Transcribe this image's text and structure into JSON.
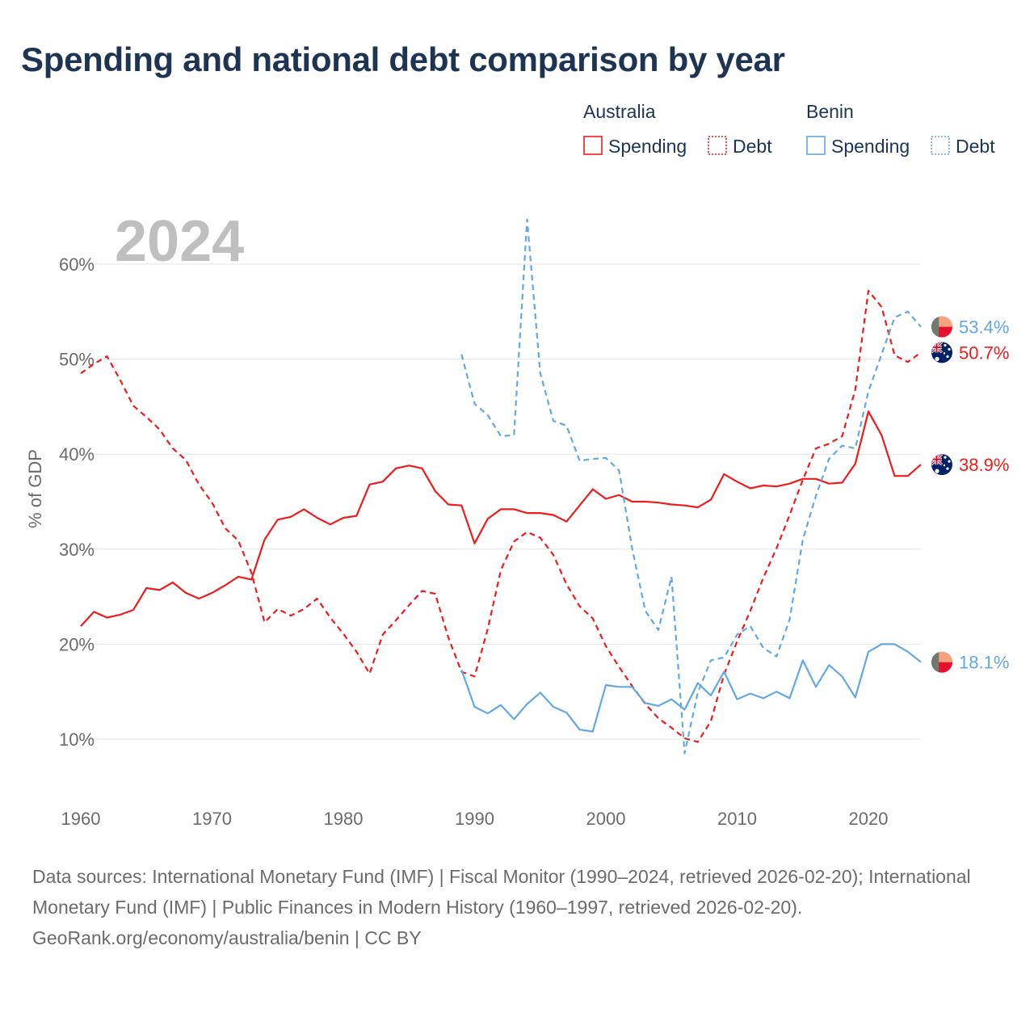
{
  "title": "Spending and national debt comparison by year",
  "chart_data": {
    "type": "line",
    "year_label": "2024",
    "ylabel": "% of GDP",
    "xlim": [
      1960,
      2024
    ],
    "ylim": [
      3,
      67
    ],
    "x_ticks": [
      1960,
      1970,
      1980,
      1990,
      2000,
      2010,
      2020
    ],
    "x_tick_labels": [
      "1960",
      "1970",
      "1980",
      "1990",
      "2000",
      "2010",
      "2020"
    ],
    "y_ticks": [
      10,
      20,
      30,
      40,
      50,
      60
    ],
    "y_tick_labels": [
      "10%",
      "20%",
      "30%",
      "40%",
      "50%",
      "60%"
    ],
    "legend": {
      "groups": [
        {
          "name": "Australia",
          "items": [
            {
              "label": "Spending",
              "style": "solid"
            },
            {
              "label": "Debt",
              "style": "dotted"
            }
          ],
          "color": "#ee1c1c"
        },
        {
          "name": "Benin",
          "items": [
            {
              "label": "Spending",
              "style": "solid"
            },
            {
              "label": "Debt",
              "style": "dotted"
            }
          ],
          "color": "#62a8e5"
        }
      ],
      "placement": "top-right"
    },
    "series": [
      {
        "name": "Australia Spending",
        "country": "Australia",
        "metric": "Spending",
        "color": "#ee1c1c",
        "dashed": false,
        "end_label": "38.9%",
        "flag": "australia",
        "x": [
          1960,
          1961,
          1962,
          1963,
          1964,
          1965,
          1966,
          1967,
          1968,
          1969,
          1970,
          1971,
          1972,
          1973,
          1974,
          1975,
          1976,
          1977,
          1978,
          1979,
          1980,
          1981,
          1982,
          1983,
          1984,
          1985,
          1986,
          1987,
          1988,
          1989,
          1990,
          1991,
          1992,
          1993,
          1994,
          1995,
          1996,
          1997,
          1998,
          1999,
          2000,
          2001,
          2002,
          2003,
          2004,
          2005,
          2006,
          2007,
          2008,
          2009,
          2010,
          2011,
          2012,
          2013,
          2014,
          2015,
          2016,
          2017,
          2018,
          2019,
          2020,
          2021,
          2022,
          2023,
          2024
        ],
        "values": [
          21.9,
          23.4,
          22.8,
          23.1,
          23.6,
          25.9,
          25.7,
          26.5,
          25.4,
          24.8,
          25.4,
          26.2,
          27.1,
          26.8,
          31.0,
          33.1,
          33.4,
          34.2,
          33.3,
          32.6,
          33.3,
          33.5,
          36.8,
          37.1,
          38.5,
          38.8,
          38.5,
          36.1,
          34.7,
          34.6,
          30.6,
          33.2,
          34.2,
          34.2,
          33.8,
          33.8,
          33.6,
          32.9,
          34.6,
          36.3,
          35.3,
          35.7,
          35.0,
          35.0,
          34.9,
          34.7,
          34.6,
          34.4,
          35.2,
          37.9,
          37.1,
          36.4,
          36.7,
          36.6,
          36.9,
          37.4,
          37.4,
          36.9,
          37.0,
          39.0,
          44.5,
          42.0,
          37.7,
          37.7,
          38.9
        ]
      },
      {
        "name": "Australia Debt",
        "country": "Australia",
        "metric": "Debt",
        "color": "#ee1c1c",
        "dashed": true,
        "end_label": "50.7%",
        "flag": "australia",
        "x": [
          1960,
          1961,
          1962,
          1963,
          1964,
          1965,
          1966,
          1967,
          1968,
          1969,
          1970,
          1971,
          1972,
          1973,
          1974,
          1975,
          1976,
          1977,
          1978,
          1979,
          1980,
          1981,
          1982,
          1983,
          1984,
          1985,
          1986,
          1987,
          1988,
          1989,
          1990,
          1991,
          1992,
          1993,
          1994,
          1995,
          1996,
          1997,
          1998,
          1999,
          2000,
          2001,
          2002,
          2003,
          2004,
          2005,
          2006,
          2007,
          2008,
          2009,
          2010,
          2011,
          2012,
          2013,
          2014,
          2015,
          2016,
          2017,
          2018,
          2019,
          2020,
          2021,
          2022,
          2023,
          2024
        ],
        "values": [
          48.5,
          49.5,
          50.3,
          47.8,
          45.1,
          43.9,
          42.6,
          40.6,
          39.4,
          36.8,
          34.9,
          32.2,
          30.9,
          27.5,
          22.3,
          23.7,
          23.0,
          23.7,
          24.8,
          22.8,
          21.1,
          19.2,
          16.9,
          21.0,
          22.5,
          24.1,
          25.6,
          25.3,
          20.7,
          17.1,
          16.6,
          21.6,
          27.8,
          30.8,
          31.8,
          31.2,
          29.4,
          26.3,
          24.0,
          22.7,
          19.8,
          17.6,
          15.6,
          13.7,
          12.2,
          11.2,
          10.1,
          9.7,
          11.9,
          16.8,
          20.3,
          23.5,
          27.0,
          30.1,
          33.6,
          37.3,
          40.6,
          41.1,
          41.9,
          46.8,
          57.2,
          55.5,
          50.4,
          49.7,
          50.7
        ]
      },
      {
        "name": "Benin Spending",
        "country": "Benin",
        "metric": "Spending",
        "color": "#62a8e5",
        "dashed": false,
        "end_label": "18.1%",
        "flag": "benin",
        "x": [
          1989,
          1990,
          1991,
          1992,
          1993,
          1994,
          1995,
          1996,
          1997,
          1998,
          1999,
          2000,
          2001,
          2002,
          2003,
          2004,
          2005,
          2006,
          2007,
          2008,
          2009,
          2010,
          2011,
          2012,
          2013,
          2014,
          2015,
          2016,
          2017,
          2018,
          2019,
          2020,
          2021,
          2022,
          2023,
          2024
        ],
        "values": [
          17.3,
          13.4,
          12.7,
          13.6,
          12.1,
          13.7,
          14.9,
          13.4,
          12.8,
          11.0,
          10.8,
          15.7,
          15.5,
          15.5,
          13.8,
          13.5,
          14.2,
          13.1,
          15.9,
          14.6,
          17.1,
          14.2,
          14.8,
          14.3,
          15.0,
          14.3,
          18.3,
          15.5,
          17.8,
          16.6,
          14.4,
          19.2,
          20.0,
          20.0,
          19.2,
          18.1
        ]
      },
      {
        "name": "Benin Debt",
        "country": "Benin",
        "metric": "Debt",
        "color": "#62a8e5",
        "dashed": true,
        "end_label": "53.4%",
        "flag": "benin",
        "x": [
          1989,
          1990,
          1991,
          1992,
          1993,
          1994,
          1995,
          1996,
          1997,
          1998,
          1999,
          2000,
          2001,
          2002,
          2003,
          2004,
          2005,
          2006,
          2007,
          2008,
          2009,
          2010,
          2011,
          2012,
          2013,
          2014,
          2015,
          2016,
          2017,
          2018,
          2019,
          2020,
          2021,
          2022,
          2023,
          2024
        ],
        "values": [
          50.5,
          45.3,
          44.1,
          41.9,
          42.0,
          64.7,
          48.5,
          43.5,
          43.0,
          39.3,
          39.5,
          39.6,
          38.3,
          30.1,
          23.5,
          21.5,
          27.1,
          8.5,
          14.9,
          18.3,
          18.6,
          21.0,
          21.9,
          19.6,
          18.7,
          22.6,
          31.0,
          35.6,
          39.5,
          40.9,
          40.6,
          46.6,
          50.5,
          54.4,
          55.0,
          53.4
        ]
      }
    ]
  },
  "sources": {
    "line1": "Data sources: International Monetary Fund (IMF) | Fiscal Monitor (1990–2024, retrieved 2026-02-20); International Monetary Fund (IMF) | Public Finances in Modern History (1960–1997, retrieved 2026-02-20).",
    "line2": "GeoRank.org/economy/australia/benin | CC BY"
  }
}
